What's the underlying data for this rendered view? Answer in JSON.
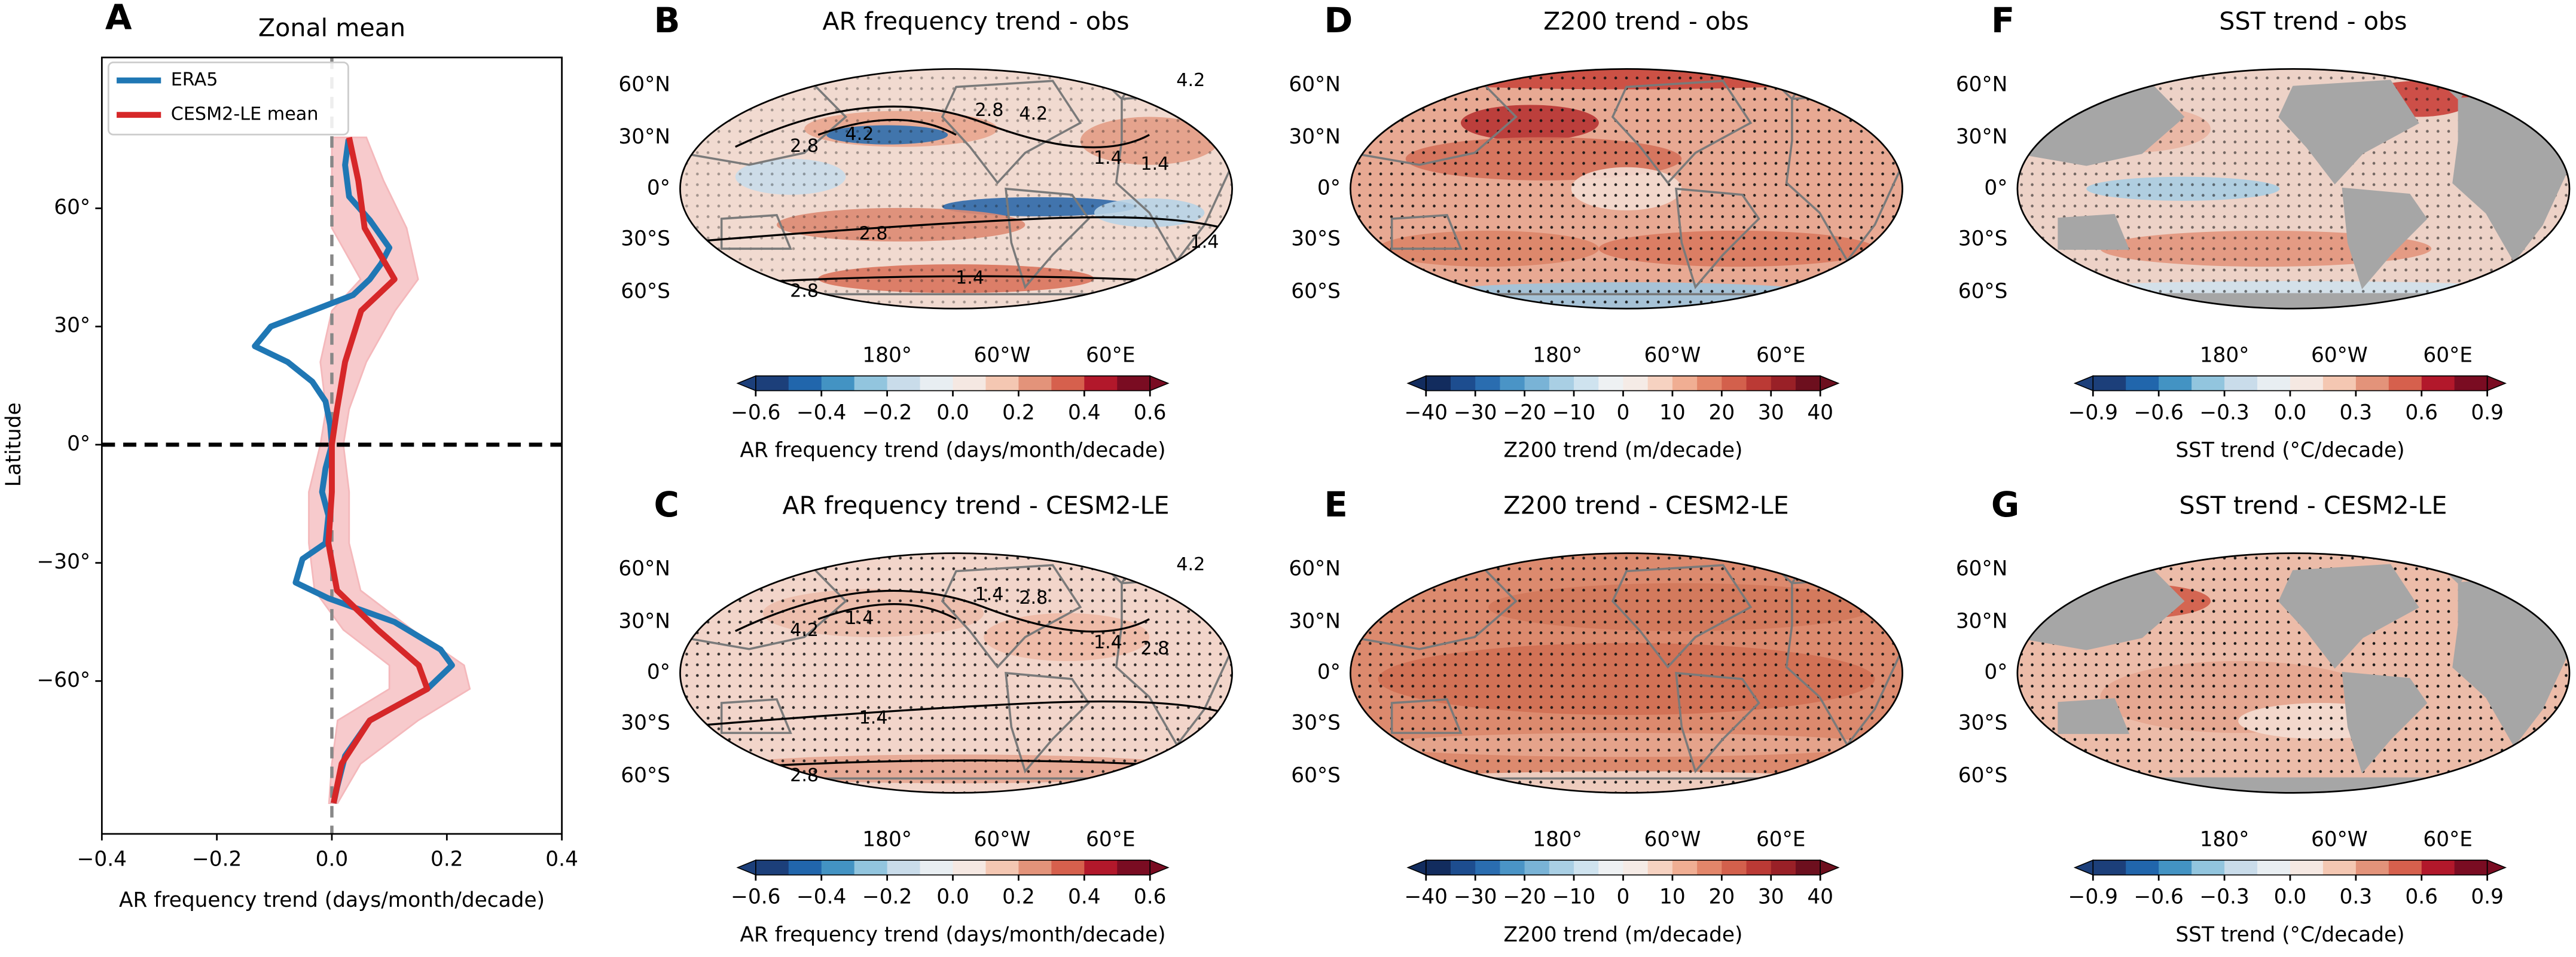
{
  "chart_data": [
    {
      "type": "line",
      "panel_label": "A",
      "title": "Zonal mean",
      "xlabel": "AR frequency trend (days/month/decade)",
      "ylabel": "Latitude",
      "xlim": [
        -0.4,
        0.4
      ],
      "ylim": [
        -98.8,
        98.3
      ],
      "xticks": [
        {
          "value": -0.4,
          "label": "−0.4"
        },
        {
          "value": -0.2,
          "label": "−0.2"
        },
        {
          "value": 0,
          "label": "0.0"
        },
        0.2,
        0.4
      ],
      "yticks": [
        {
          "value": 60,
          "label": "60°"
        },
        {
          "value": 30,
          "label": "30°"
        },
        {
          "value": 0,
          "label": "0°"
        },
        {
          "value": -30,
          "label": "−30°"
        },
        {
          "value": -60,
          "label": "−60°"
        }
      ],
      "legend": "upper left",
      "series": [
        {
          "name": "ERA5",
          "color": "#1f77b4",
          "latitudes": [
            77.5,
            71,
            63,
            57,
            50,
            46,
            42,
            38,
            34,
            30,
            25,
            21,
            16,
            11,
            5,
            0,
            -6,
            -12,
            -18,
            -25,
            -29,
            -35,
            -39,
            -45,
            -52,
            -56,
            -62,
            -70,
            -79,
            -87,
            -91
          ],
          "values": [
            0.029,
            0.023,
            0.03,
            0.066,
            0.1,
            0.086,
            0.066,
            0.037,
            -0.034,
            -0.106,
            -0.134,
            -0.077,
            -0.034,
            -0.011,
            -0.003,
            0,
            -0.011,
            -0.017,
            -0.006,
            -0.011,
            -0.051,
            -0.063,
            -0.006,
            0.109,
            0.189,
            0.209,
            0.166,
            0.066,
            0.023,
            0.009,
            0.003
          ]
        },
        {
          "name": "CESM2-LE mean",
          "color": "#d62728",
          "latitudes": [
            78,
            67,
            55,
            42,
            34,
            21,
            9,
            0,
            -12,
            -25,
            -37,
            -47,
            -56,
            -62,
            -70,
            -81,
            -91
          ],
          "values": [
            0.03,
            0.046,
            0.057,
            0.109,
            0.051,
            0.023,
            0.009,
            0,
            0,
            -0.006,
            0.009,
            0.08,
            0.151,
            0.166,
            0.066,
            0.017,
            0.003
          ],
          "spread_upper": [
            0.06,
            0.09,
            0.13,
            0.15,
            0.11,
            0.06,
            0.03,
            0.02,
            0.03,
            0.03,
            0.05,
            0.14,
            0.23,
            0.24,
            0.15,
            0.05,
            0.01
          ],
          "spread_lower": [
            0.0,
            0.0,
            0.0,
            0.05,
            0.0,
            -0.02,
            -0.01,
            -0.02,
            -0.04,
            -0.04,
            -0.03,
            0.02,
            0.1,
            0.1,
            0.01,
            0.0,
            -0.005
          ],
          "spread_color": "#f4b8bb"
        }
      ]
    },
    {
      "type": "map",
      "panel_label": "B",
      "title": "AR frequency trend - obs",
      "lat_labels": [
        "60°N",
        "30°N",
        "0°",
        "30°S",
        "60°S"
      ],
      "lon_labels": [
        "180°",
        "60°W",
        "60°E"
      ],
      "contour_labels": [
        "4.2",
        "2.8",
        "4.2",
        "2.8",
        "4.2",
        "1.4",
        "1.4",
        "2.8",
        "2.8",
        "1.4",
        "1.4"
      ],
      "colorbar": {
        "label": "AR frequency trend (days/month/decade)",
        "lim": [
          -0.6,
          0.6
        ],
        "ticks": [
          {
            "value": -0.6,
            "label": "−0.6"
          },
          {
            "value": -0.4,
            "label": "−0.4"
          },
          {
            "value": -0.2,
            "label": "−0.2"
          },
          {
            "value": 0,
            "label": "0.0"
          },
          0.2,
          0.4,
          0.6
        ],
        "colors": [
          "#1c3f7a",
          "#2166ac",
          "#4393c3",
          "#92c5de",
          "#c9dcea",
          "#e8eef2",
          "#f5e8e2",
          "#f4c7b2",
          "#e3937a",
          "#d6604d",
          "#b2182b",
          "#7a0c22"
        ]
      }
    },
    {
      "type": "map",
      "panel_label": "C",
      "title": "AR frequency trend - CESM2-LE",
      "lat_labels": [
        "60°N",
        "30°N",
        "0°",
        "30°S",
        "60°S"
      ],
      "lon_labels": [
        "180°",
        "60°W",
        "60°E"
      ],
      "contour_labels": [
        "4.2",
        "1.4",
        "2.8",
        "4.2",
        "1.4",
        "1.4",
        "2.8",
        "1.4",
        "2.8"
      ],
      "colorbar": {
        "label": "AR frequency trend (days/month/decade)",
        "lim": [
          -0.6,
          0.6
        ],
        "ticks": [
          {
            "value": -0.6,
            "label": "−0.6"
          },
          {
            "value": -0.4,
            "label": "−0.4"
          },
          {
            "value": -0.2,
            "label": "−0.2"
          },
          {
            "value": 0,
            "label": "0.0"
          },
          0.2,
          0.4,
          0.6
        ],
        "colors": [
          "#1c3f7a",
          "#2166ac",
          "#4393c3",
          "#92c5de",
          "#c9dcea",
          "#e8eef2",
          "#f5e8e2",
          "#f4c7b2",
          "#e3937a",
          "#d6604d",
          "#b2182b",
          "#7a0c22"
        ]
      }
    },
    {
      "type": "map",
      "panel_label": "D",
      "title": "Z200 trend - obs",
      "lat_labels": [
        "60°N",
        "30°N",
        "0°",
        "30°S",
        "60°S"
      ],
      "lon_labels": [
        "180°",
        "60°W",
        "60°E"
      ],
      "colorbar": {
        "label": "Z200 trend (m/decade)",
        "lim": [
          -40,
          40
        ],
        "ticks": [
          {
            "value": -40,
            "label": "−40"
          },
          {
            "value": -30,
            "label": "−30"
          },
          {
            "value": -20,
            "label": "−20"
          },
          {
            "value": -10,
            "label": "−10"
          },
          0,
          10,
          20,
          30,
          40
        ],
        "colors": [
          "#122c5e",
          "#1d4d8f",
          "#2a6db0",
          "#4a94c6",
          "#79b3d6",
          "#a9cfe4",
          "#cfe3ef",
          "#eef1f3",
          "#f5ebe6",
          "#f6d2c1",
          "#f0ae93",
          "#e3866a",
          "#d3604c",
          "#bb3a35",
          "#992027",
          "#6d0f1e"
        ]
      }
    },
    {
      "type": "map",
      "panel_label": "E",
      "title": "Z200 trend - CESM2-LE",
      "lat_labels": [
        "60°N",
        "30°N",
        "0°",
        "30°S",
        "60°S"
      ],
      "lon_labels": [
        "180°",
        "60°W",
        "60°E"
      ],
      "colorbar": {
        "label": "Z200 trend (m/decade)",
        "lim": [
          -40,
          40
        ],
        "ticks": [
          {
            "value": -40,
            "label": "−40"
          },
          {
            "value": -30,
            "label": "−30"
          },
          {
            "value": -20,
            "label": "−20"
          },
          {
            "value": -10,
            "label": "−10"
          },
          0,
          10,
          20,
          30,
          40
        ],
        "colors": [
          "#122c5e",
          "#1d4d8f",
          "#2a6db0",
          "#4a94c6",
          "#79b3d6",
          "#a9cfe4",
          "#cfe3ef",
          "#eef1f3",
          "#f5ebe6",
          "#f6d2c1",
          "#f0ae93",
          "#e3866a",
          "#d3604c",
          "#bb3a35",
          "#992027",
          "#6d0f1e"
        ]
      }
    },
    {
      "type": "map",
      "panel_label": "F",
      "title": "SST trend - obs",
      "lat_labels": [
        "60°N",
        "30°N",
        "0°",
        "30°S",
        "60°S"
      ],
      "lon_labels": [
        "180°",
        "60°W",
        "60°E"
      ],
      "colorbar": {
        "label": "SST trend (°C/decade)",
        "lim": [
          -0.9,
          0.9
        ],
        "ticks": [
          {
            "value": -0.9,
            "label": "−0.9"
          },
          {
            "value": -0.6,
            "label": "−0.6"
          },
          {
            "value": -0.3,
            "label": "−0.3"
          },
          {
            "value": 0,
            "label": "0.0"
          },
          0.3,
          0.6,
          0.9
        ],
        "colors": [
          "#1c3f7a",
          "#2166ac",
          "#4393c3",
          "#92c5de",
          "#c9dcea",
          "#e8eef2",
          "#f5e8e2",
          "#f4c7b2",
          "#e3937a",
          "#d6604d",
          "#b2182b",
          "#7a0c22"
        ]
      }
    },
    {
      "type": "map",
      "panel_label": "G",
      "title": "SST trend - CESM2-LE",
      "lat_labels": [
        "60°N",
        "30°N",
        "0°",
        "30°S",
        "60°S"
      ],
      "lon_labels": [
        "180°",
        "60°W",
        "60°E"
      ],
      "colorbar": {
        "label": "SST trend (°C/decade)",
        "lim": [
          -0.9,
          0.9
        ],
        "ticks": [
          {
            "value": -0.9,
            "label": "−0.9"
          },
          {
            "value": -0.6,
            "label": "−0.6"
          },
          {
            "value": -0.3,
            "label": "−0.3"
          },
          {
            "value": 0,
            "label": "0.0"
          },
          0.3,
          0.6,
          0.9
        ],
        "colors": [
          "#1c3f7a",
          "#2166ac",
          "#4393c3",
          "#92c5de",
          "#c9dcea",
          "#e8eef2",
          "#f5e8e2",
          "#f4c7b2",
          "#e3937a",
          "#d6604d",
          "#b2182b",
          "#7a0c22"
        ]
      }
    }
  ]
}
